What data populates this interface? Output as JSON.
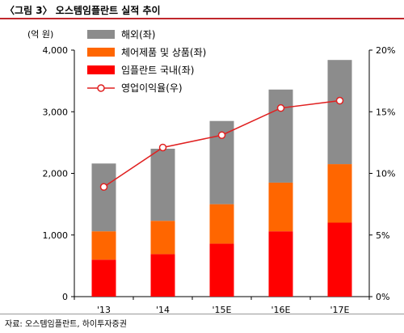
{
  "title": "〈그림 3〉 오스템임플란트 실적 추이",
  "source": "자료: 오스템임플란트, 하이투자증권",
  "colors": {
    "overseas": "#8c8c8c",
    "consumables": "#ff6600",
    "domestic": "#ff0000",
    "line": "#e02020",
    "title_rule": "#c0272d"
  },
  "chart_data": {
    "type": "bar",
    "stacked": true,
    "categories": [
      "'13",
      "'14",
      "'15E",
      "'16E",
      "'17E"
    ],
    "series": [
      {
        "name": "임플란트 국내(좌)",
        "values": [
          600,
          690,
          860,
          1060,
          1200
        ]
      },
      {
        "name": "체어제품 및 상품(좌)",
        "values": [
          460,
          540,
          640,
          790,
          950
        ]
      },
      {
        "name": "해외(좌)",
        "values": [
          1100,
          1170,
          1350,
          1510,
          1690
        ]
      }
    ],
    "line_series": {
      "name": "영업이익율(우)",
      "values": [
        8.9,
        12.1,
        13.1,
        15.3,
        15.9
      ],
      "axis": "right"
    },
    "left_axis": {
      "label": "(억 원)",
      "ylim": [
        0,
        4000
      ],
      "ticks": [
        "0",
        "1,000",
        "2,000",
        "3,000",
        "4,000"
      ]
    },
    "right_axis": {
      "ylim": [
        0,
        20
      ],
      "ticks": [
        "0%",
        "5%",
        "10%",
        "15%",
        "20%"
      ]
    },
    "legend_order": [
      "해외(좌)",
      "체어제품 및 상품(좌)",
      "임플란트 국내(좌)",
      "영업이익율(우)"
    ],
    "legend_position": "top-left",
    "grid": false
  }
}
